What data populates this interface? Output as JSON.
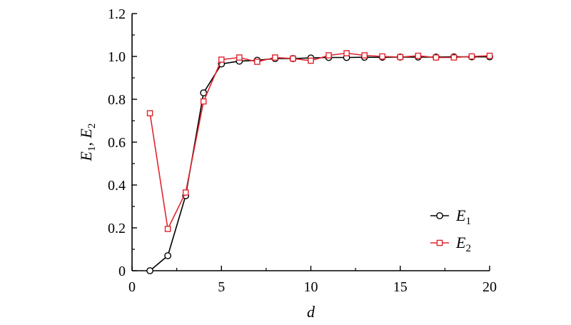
{
  "chart_data": {
    "type": "line",
    "xlabel": "d",
    "ylabel": {
      "parts": [
        "E",
        "1",
        ", ",
        "E",
        "2"
      ]
    },
    "xlim": [
      0,
      20
    ],
    "ylim": [
      0,
      1.2
    ],
    "x_ticks": [
      "0",
      "5",
      "10",
      "15",
      "20"
    ],
    "y_ticks": [
      "0",
      "0.2",
      "0.4",
      "0.6",
      "0.8",
      "1.0",
      "1.2"
    ],
    "grid": false,
    "legend_position": "bottom-right",
    "series": [
      {
        "name": "E1",
        "label_main": "E",
        "label_sub": "1",
        "color": "#000000",
        "marker": "circle",
        "x": [
          1,
          2,
          3,
          4,
          5,
          6,
          7,
          8,
          9,
          10,
          11,
          12,
          13,
          14,
          15,
          16,
          17,
          18,
          19,
          20
        ],
        "y": [
          0.0,
          0.07,
          0.35,
          0.83,
          0.965,
          0.978,
          0.982,
          0.99,
          0.99,
          0.993,
          0.995,
          0.995,
          0.996,
          0.996,
          0.997,
          0.997,
          0.997,
          0.998,
          0.998,
          0.998
        ]
      },
      {
        "name": "E2",
        "label_main": "E",
        "label_sub": "2",
        "color": "#e0262f",
        "marker": "square",
        "x": [
          1,
          2,
          3,
          4,
          5,
          6,
          7,
          8,
          9,
          10,
          11,
          12,
          13,
          14,
          15,
          16,
          17,
          18,
          19,
          20
        ],
        "y": [
          0.735,
          0.195,
          0.365,
          0.79,
          0.985,
          0.995,
          0.975,
          0.995,
          0.99,
          0.98,
          1.005,
          1.015,
          1.005,
          1.0,
          0.997,
          1.003,
          0.995,
          0.995,
          1.0,
          1.003
        ]
      }
    ]
  }
}
